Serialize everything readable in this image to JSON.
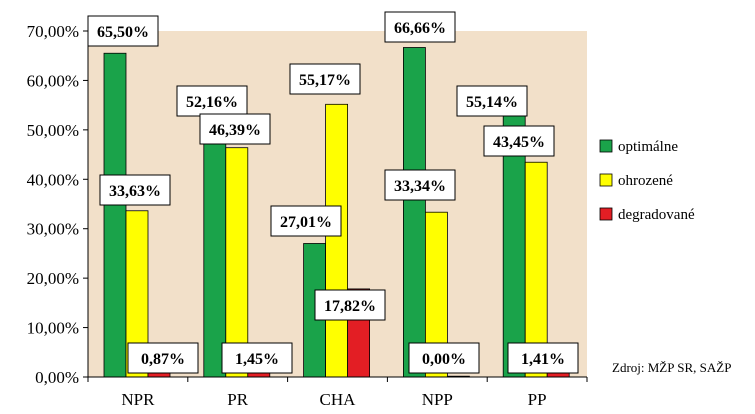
{
  "chart_data": {
    "type": "bar",
    "categories": [
      "NPR",
      "PR",
      "CHA",
      "NPP",
      "PP"
    ],
    "series": [
      {
        "name": "optimálne",
        "color": "#1aa34a",
        "values": [
          65.5,
          52.16,
          27.01,
          66.66,
          55.14
        ],
        "labels": [
          "65,50%",
          "52,16%",
          "27,01%",
          "66,66%",
          "55,14%"
        ]
      },
      {
        "name": "ohrozené",
        "color": "#ffff00",
        "values": [
          33.63,
          46.39,
          55.17,
          33.34,
          43.45
        ],
        "labels": [
          "33,63%",
          "46,39%",
          "55,17%",
          "33,34%",
          "43,45%"
        ]
      },
      {
        "name": "degradované",
        "color": "#e31e24",
        "values": [
          0.87,
          1.45,
          17.82,
          0.0,
          1.41
        ],
        "labels": [
          "0,87%",
          "1,45%",
          "17,82%",
          "0,00%",
          "1,41%"
        ]
      }
    ],
    "ylim": [
      0,
      70
    ],
    "yticks": [
      "0,00%",
      "10,00%",
      "20,00%",
      "30,00%",
      "40,00%",
      "50,00%",
      "60,00%",
      "70,00%"
    ],
    "legend_position": "right",
    "plot_background": "#f2e0c9",
    "grid": false
  },
  "source_note": "Zdroj: MŽP SR, SAŽP"
}
